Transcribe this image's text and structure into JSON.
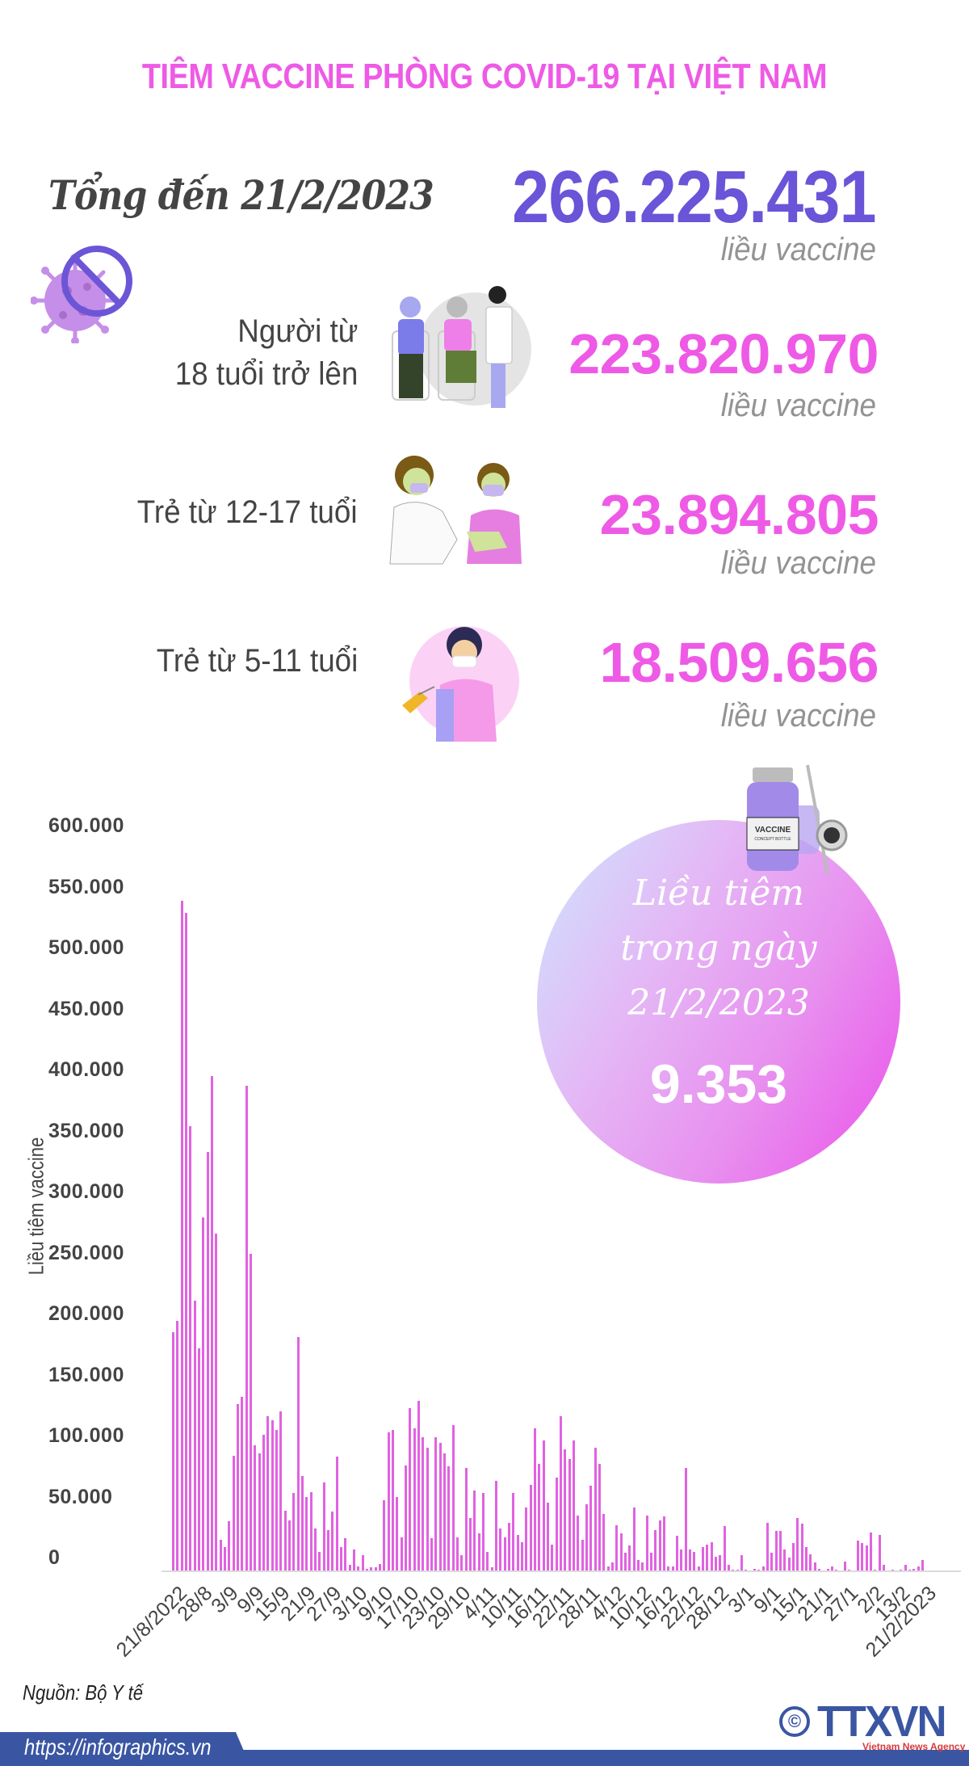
{
  "title": "TIÊM VACCINE PHÒNG COVID-19 TẠI VIỆT NAM",
  "total": {
    "label": "Tổng đến 21/2/2023",
    "value": "266.225.431",
    "unit": "liều vaccine"
  },
  "groups": [
    {
      "label_line1": "Người từ",
      "label_line2": "18 tuổi trở lên",
      "value": "223.820.970",
      "unit": "liều vaccine",
      "icon": "elderly-vaccination-illustration"
    },
    {
      "label_line1": "Trẻ từ 12-17 tuổi",
      "label_line2": "",
      "value": "23.894.805",
      "unit": "liều vaccine",
      "icon": "teen-vaccination-illustration"
    },
    {
      "label_line1": "Trẻ từ 5-11 tuổi",
      "label_line2": "",
      "value": "18.509.656",
      "unit": "liều vaccine",
      "icon": "child-vaccination-illustration"
    }
  ],
  "icons": {
    "virus": "no-virus-icon",
    "vial": "vaccine-vial-icon"
  },
  "vial_label": {
    "line1": "VACCINE",
    "line2": "CONCEPT BOTTLE"
  },
  "daily": {
    "line1": "Liều tiêm",
    "line2": "trong ngày",
    "line3": "21/2/2023",
    "value": "9.353"
  },
  "colors": {
    "title": "#ee5ae6",
    "total_value": "#6a54d8",
    "group_value": "#ee5ae6",
    "bar": "#e162e1",
    "unit": "#939393",
    "footer_band": "#3a56a3"
  },
  "chart_data": {
    "type": "bar",
    "title": "",
    "xlabel": "",
    "ylabel": "Liều tiêm vaccine",
    "ylim": [
      0,
      600000
    ],
    "yticks": [
      "600.000",
      "550.000",
      "500.000",
      "450.000",
      "400.000",
      "350.000",
      "300.000",
      "250.000",
      "200.000",
      "150.000",
      "100.000",
      "50.000",
      "0"
    ],
    "grid": false,
    "legend": null,
    "xtick_labels": [
      "21/8/2022",
      "28/8",
      "3/9",
      "9/9",
      "15/9",
      "21/9",
      "27/9",
      "3/10",
      "9/10",
      "17/10",
      "23/10",
      "29/10",
      "4/11",
      "10/11",
      "16/11",
      "22/11",
      "28/11",
      "4/12",
      "10/12",
      "16/12",
      "22/12",
      "28/12",
      "3/1",
      "9/1",
      "15/1",
      "21/1",
      "27/1",
      "2/2",
      "13/2",
      "21/2/2023"
    ],
    "values": [
      196000,
      205000,
      550000,
      540000,
      365000,
      222000,
      183000,
      290000,
      344000,
      406000,
      277000,
      26000,
      20000,
      41000,
      95000,
      137000,
      143000,
      398000,
      260000,
      103000,
      97000,
      112000,
      127000,
      124000,
      116000,
      131000,
      50000,
      42000,
      64000,
      192000,
      78000,
      61000,
      65000,
      35000,
      16000,
      73000,
      34000,
      49000,
      94000,
      20000,
      27000,
      5000,
      18000,
      4000,
      13000,
      2000,
      3000,
      3000,
      6000,
      58000,
      114000,
      116000,
      61000,
      28000,
      87000,
      134000,
      117000,
      140000,
      110000,
      101000,
      27000,
      110000,
      105000,
      97000,
      86000,
      120000,
      28000,
      13000,
      85000,
      44000,
      66000,
      31000,
      64000,
      16000,
      3000,
      74000,
      35000,
      28000,
      40000,
      64000,
      30000,
      24000,
      52000,
      71000,
      117000,
      88000,
      107000,
      56000,
      22000,
      77000,
      127000,
      100000,
      92000,
      107000,
      46000,
      26000,
      55000,
      70000,
      101000,
      88000,
      47000,
      4000,
      7000,
      38000,
      31000,
      15000,
      21000,
      52000,
      9000,
      7000,
      46000,
      15000,
      34000,
      42000,
      45000,
      4000,
      4000,
      29000,
      18000,
      85000,
      18000,
      16000,
      4000,
      20000,
      22000,
      24000,
      12000,
      13000,
      37000,
      5000,
      1000,
      1000,
      13000,
      1000,
      0,
      2000,
      1000,
      4000,
      40000,
      15000,
      33000,
      33000,
      18000,
      11000,
      23000,
      44000,
      39000,
      20000,
      14000,
      7000,
      2000,
      0,
      2000,
      4000,
      1000,
      0,
      8000,
      1000,
      0,
      25000,
      23000,
      21000,
      32000,
      1000,
      30000,
      5000,
      0,
      1000,
      0,
      1000,
      5000,
      1000,
      2000,
      4000,
      9353
    ]
  },
  "footer": {
    "source": "Nguồn: Bộ Y tế",
    "url": "https://infographics.vn",
    "logo_text": "TTXVN",
    "logo_sub": "Vietnam News Agency",
    "copyright": "©"
  }
}
